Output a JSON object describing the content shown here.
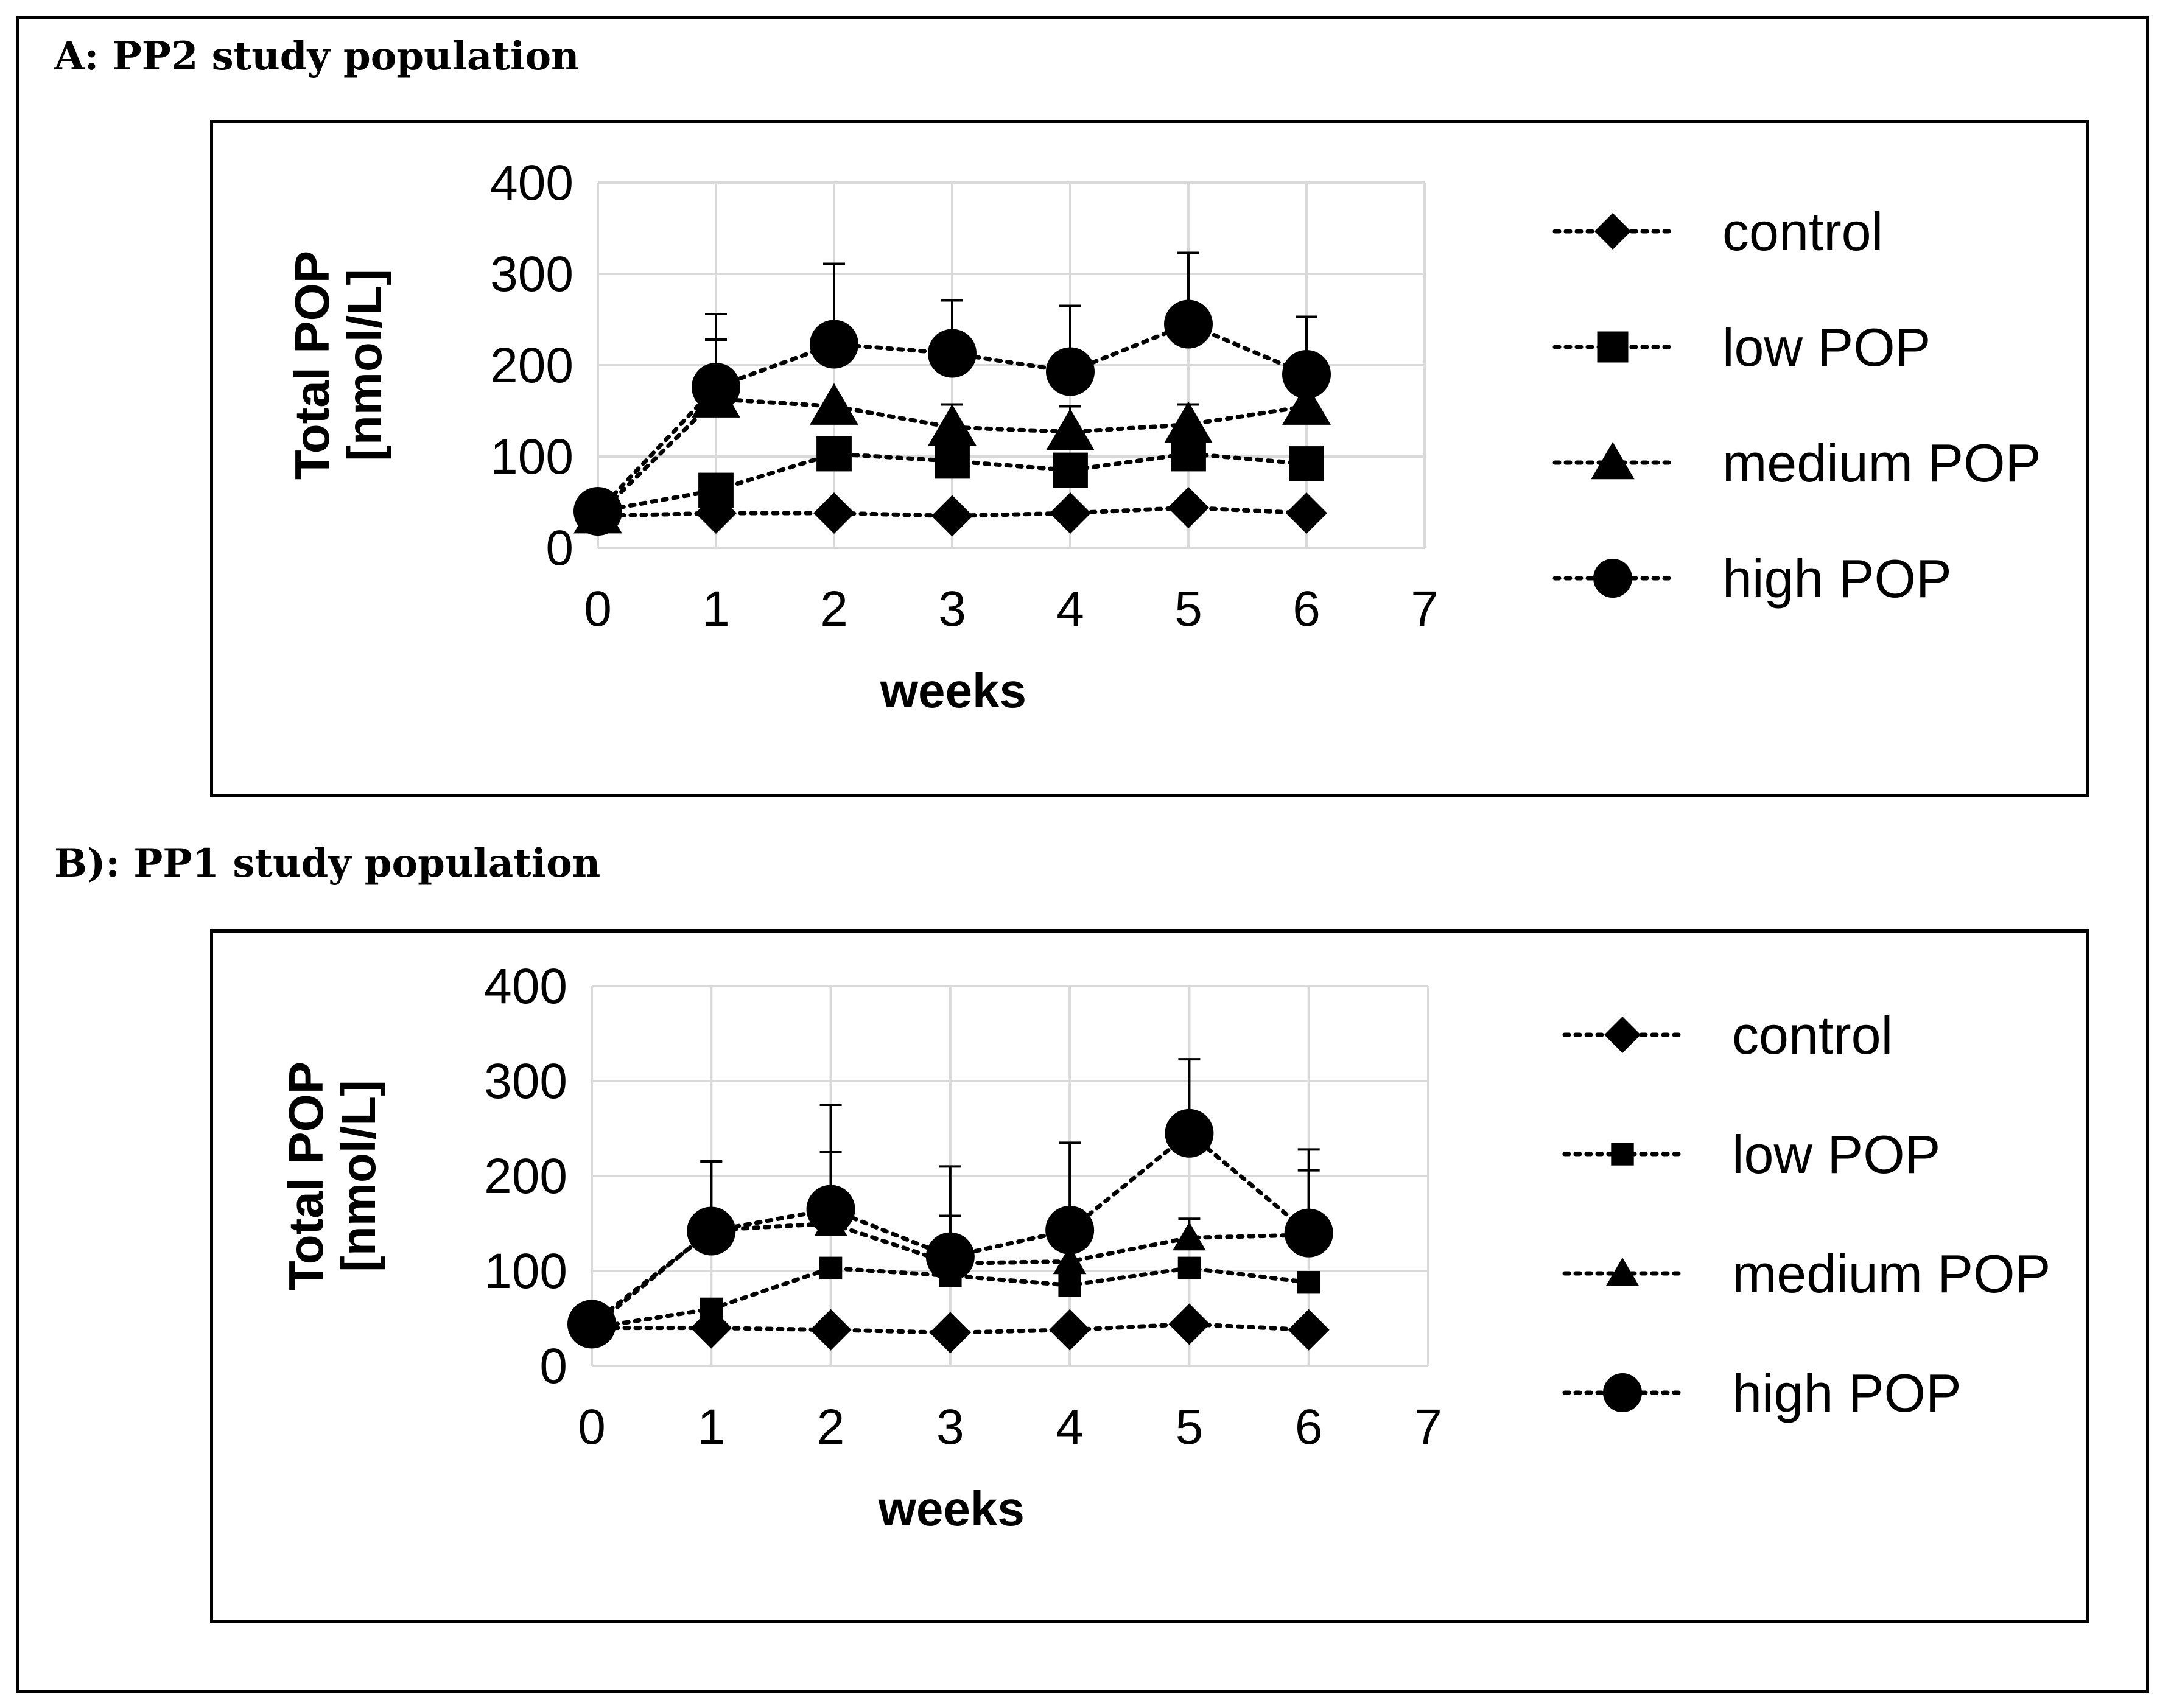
{
  "figure": {
    "panels": [
      {
        "title": "A: PP2 study population",
        "chart_data": {
          "type": "line",
          "xlabel": "weeks",
          "ylabel": [
            "Total  POP",
            "[nmol/L]"
          ],
          "xlim": [
            0,
            7
          ],
          "ylim": [
            0,
            400
          ],
          "xticks": [
            0,
            1,
            2,
            3,
            4,
            5,
            6,
            7
          ],
          "yticks": [
            0,
            100,
            200,
            300,
            400
          ],
          "grid": true,
          "legend_position": "right",
          "line_style": "dotted",
          "series": [
            {
              "name": "control",
              "marker": "diamond",
              "x": [
                0,
                1,
                2,
                3,
                4,
                5,
                6
              ],
              "values": [
                35,
                38,
                38,
                35,
                38,
                44,
                38
              ],
              "error_plus": [
                0,
                0,
                0,
                0,
                0,
                0,
                0
              ]
            },
            {
              "name": "low POP",
              "marker": "square",
              "x": [
                0,
                1,
                2,
                3,
                4,
                5,
                6
              ],
              "values": [
                40,
                63,
                103,
                95,
                85,
                103,
                92
              ],
              "error_plus": [
                0,
                0,
                0,
                0,
                0,
                0,
                0
              ]
            },
            {
              "name": "medium POP",
              "marker": "triangle",
              "x": [
                0,
                1,
                2,
                3,
                4,
                5,
                6
              ],
              "values": [
                36,
                163,
                155,
                132,
                127,
                135,
                155
              ],
              "error_plus": [
                0,
                65,
                0,
                25,
                28,
                22,
                0
              ]
            },
            {
              "name": "high POP",
              "marker": "circle",
              "x": [
                0,
                1,
                2,
                3,
                4,
                5,
                6
              ],
              "values": [
                40,
                176,
                223,
                213,
                193,
                245,
                190
              ],
              "error_plus": [
                0,
                80,
                88,
                58,
                72,
                78,
                63
              ]
            }
          ]
        }
      },
      {
        "title": "B): PP1 study population",
        "chart_data": {
          "type": "line",
          "xlabel": "weeks",
          "ylabel": [
            "Total POP",
            "[nmol/L]"
          ],
          "xlim": [
            0,
            7
          ],
          "ylim": [
            0,
            400
          ],
          "xticks": [
            0,
            1,
            2,
            3,
            4,
            5,
            6,
            7
          ],
          "yticks": [
            0,
            100,
            200,
            300,
            400
          ],
          "grid": true,
          "legend_position": "right",
          "line_style": "dotted",
          "series": [
            {
              "name": "control",
              "marker": "diamond",
              "x": [
                0,
                1,
                2,
                3,
                4,
                5,
                6
              ],
              "values": [
                40,
                40,
                38,
                35,
                38,
                44,
                38
              ],
              "error_plus": [
                0,
                0,
                0,
                0,
                0,
                0,
                0
              ]
            },
            {
              "name": "low POP",
              "marker": "square",
              "x": [
                0,
                1,
                2,
                3,
                4,
                5,
                6
              ],
              "values": [
                40,
                60,
                103,
                95,
                85,
                103,
                88
              ],
              "error_plus": [
                0,
                0,
                0,
                0,
                0,
                0,
                0
              ]
            },
            {
              "name": "medium POP",
              "marker": "triangle",
              "x": [
                0,
                1,
                2,
                3,
                4,
                5,
                6
              ],
              "values": [
                40,
                143,
                150,
                108,
                110,
                135,
                138
              ],
              "error_plus": [
                0,
                73,
                75,
                50,
                0,
                20,
                68
              ]
            },
            {
              "name": "high POP",
              "marker": "circle",
              "x": [
                0,
                1,
                2,
                3,
                4,
                5,
                6
              ],
              "values": [
                44,
                142,
                165,
                115,
                143,
                245,
                140
              ],
              "error_plus": [
                0,
                73,
                110,
                95,
                92,
                78,
                88
              ]
            }
          ]
        }
      }
    ]
  }
}
